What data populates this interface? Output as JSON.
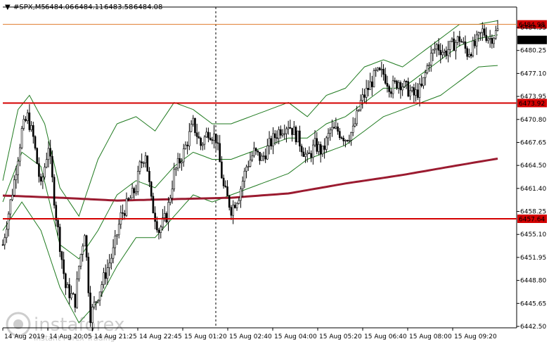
{
  "header": {
    "triangle": "▼",
    "symbol": "#SPX,M5",
    "ohlc": [
      "6484.06",
      "6484.11",
      "6483.58",
      "6484.08"
    ]
  },
  "watermark": {
    "brand": "instaforex",
    "tagline": "Instant Forex Trading"
  },
  "colors": {
    "candle": "#000000",
    "bollinger": "#1f7a1f",
    "ma": "#9b1b30",
    "level": "#d40000",
    "current_price": "#e07a2a",
    "label_red": "#d40000",
    "label_dark": "#000000"
  },
  "chart_data": {
    "type": "candlestick",
    "symbol": "#SPX",
    "timeframe": "M5",
    "y_ticks": [
      "6484.55",
      "6480.25",
      "6477.10",
      "6473.95",
      "6470.80",
      "6467.65",
      "6464.50",
      "6461.40",
      "6458.25",
      "6455.10",
      "6451.95",
      "6448.80",
      "6445.65",
      "6442.50"
    ],
    "x_ticks": [
      "14 Aug 2019",
      "14 Aug 20:05",
      "14 Aug 21:25",
      "14 Aug 22:45",
      "15 Aug 01:20",
      "15 Aug 02:40",
      "15 Aug 04:00",
      "15 Aug 05:20",
      "15 Aug 06:40",
      "15 Aug 08:00",
      "15 Aug 09:20"
    ],
    "levels": [
      {
        "value": 6484.98,
        "label": "6484.98",
        "style": "current-high"
      },
      {
        "value": 6473.92,
        "label": "6473.92",
        "style": "support-resistance"
      },
      {
        "value": 6457.64,
        "label": "6457.64",
        "style": "support-resistance"
      }
    ],
    "current_price": {
      "value": 6484.08,
      "label": "6484.08"
    },
    "session_separator_after": "14 Aug 22:45",
    "price_path": [
      [
        0,
        6454
      ],
      [
        6,
        6463
      ],
      [
        10,
        6470
      ],
      [
        13,
        6472
      ],
      [
        16,
        6469
      ],
      [
        20,
        6462
      ],
      [
        24,
        6468
      ],
      [
        28,
        6458
      ],
      [
        33,
        6448
      ],
      [
        38,
        6446
      ],
      [
        40,
        6451
      ],
      [
        43,
        6456
      ],
      [
        46,
        6444
      ],
      [
        50,
        6447
      ],
      [
        54,
        6450
      ],
      [
        58,
        6453
      ],
      [
        62,
        6458
      ],
      [
        66,
        6460
      ],
      [
        70,
        6462
      ],
      [
        72,
        6465
      ],
      [
        75,
        6467
      ],
      [
        78,
        6460
      ],
      [
        82,
        6456
      ],
      [
        86,
        6458
      ],
      [
        90,
        6464
      ],
      [
        95,
        6467
      ],
      [
        100,
        6471
      ],
      [
        104,
        6468
      ],
      [
        108,
        6470
      ],
      [
        112,
        6469
      ],
      [
        116,
        6462
      ],
      [
        120,
        6459
      ],
      [
        124,
        6461
      ],
      [
        128,
        6465
      ],
      [
        132,
        6467
      ],
      [
        136,
        6466
      ],
      [
        140,
        6468
      ],
      [
        145,
        6470
      ],
      [
        150,
        6471
      ],
      [
        155,
        6469
      ],
      [
        160,
        6466
      ],
      [
        164,
        6468
      ],
      [
        168,
        6467
      ],
      [
        172,
        6470
      ],
      [
        176,
        6470
      ],
      [
        180,
        6469
      ],
      [
        184,
        6470
      ],
      [
        188,
        6474
      ],
      [
        192,
        6476
      ],
      [
        196,
        6478
      ],
      [
        200,
        6478
      ],
      [
        204,
        6476
      ],
      [
        208,
        6477
      ],
      [
        212,
        6476
      ],
      [
        216,
        6475
      ],
      [
        220,
        6476
      ],
      [
        224,
        6480
      ],
      [
        228,
        6482
      ],
      [
        232,
        6481
      ],
      [
        236,
        6482
      ],
      [
        240,
        6483
      ],
      [
        244,
        6481
      ],
      [
        248,
        6482
      ],
      [
        252,
        6484
      ],
      [
        256,
        6483
      ],
      [
        260,
        6484.08
      ]
    ],
    "moving_average": [
      [
        0,
        6460.9
      ],
      [
        30,
        6460.6
      ],
      [
        60,
        6460.2
      ],
      [
        90,
        6460.4
      ],
      [
        120,
        6460.6
      ],
      [
        150,
        6461.2
      ],
      [
        180,
        6462.6
      ],
      [
        210,
        6463.8
      ],
      [
        240,
        6465.2
      ],
      [
        260,
        6466.1
      ]
    ],
    "bollinger_upper": [
      [
        0,
        6463
      ],
      [
        8,
        6473
      ],
      [
        14,
        6475
      ],
      [
        22,
        6471
      ],
      [
        30,
        6462
      ],
      [
        40,
        6458
      ],
      [
        50,
        6466
      ],
      [
        60,
        6471
      ],
      [
        70,
        6472
      ],
      [
        80,
        6470
      ],
      [
        90,
        6474
      ],
      [
        100,
        6473
      ],
      [
        110,
        6471
      ],
      [
        120,
        6471
      ],
      [
        130,
        6472
      ],
      [
        140,
        6473
      ],
      [
        150,
        6474
      ],
      [
        160,
        6472
      ],
      [
        170,
        6475
      ],
      [
        180,
        6476
      ],
      [
        190,
        6479
      ],
      [
        200,
        6480
      ],
      [
        210,
        6479
      ],
      [
        220,
        6481
      ],
      [
        230,
        6483
      ],
      [
        240,
        6485
      ],
      [
        250,
        6485
      ],
      [
        260,
        6485.5
      ]
    ],
    "bollinger_middle": [
      [
        0,
        6460
      ],
      [
        10,
        6467
      ],
      [
        20,
        6465
      ],
      [
        30,
        6454
      ],
      [
        40,
        6452
      ],
      [
        50,
        6456
      ],
      [
        60,
        6461
      ],
      [
        70,
        6463
      ],
      [
        80,
        6462
      ],
      [
        90,
        6465
      ],
      [
        100,
        6467
      ],
      [
        110,
        6466
      ],
      [
        120,
        6466
      ],
      [
        130,
        6467
      ],
      [
        140,
        6468
      ],
      [
        150,
        6469
      ],
      [
        160,
        6469
      ],
      [
        170,
        6471
      ],
      [
        180,
        6472
      ],
      [
        190,
        6474
      ],
      [
        200,
        6476
      ],
      [
        210,
        6476
      ],
      [
        220,
        6478
      ],
      [
        230,
        6480
      ],
      [
        240,
        6482
      ],
      [
        250,
        6483
      ],
      [
        260,
        6483.5
      ]
    ],
    "bollinger_lower": [
      [
        0,
        6456
      ],
      [
        10,
        6460
      ],
      [
        20,
        6456
      ],
      [
        30,
        6448
      ],
      [
        40,
        6443
      ],
      [
        50,
        6446
      ],
      [
        60,
        6451
      ],
      [
        70,
        6455
      ],
      [
        80,
        6455
      ],
      [
        90,
        6458
      ],
      [
        100,
        6461
      ],
      [
        110,
        6460
      ],
      [
        120,
        6461
      ],
      [
        130,
        6462
      ],
      [
        140,
        6463
      ],
      [
        150,
        6464
      ],
      [
        160,
        6466
      ],
      [
        170,
        6467
      ],
      [
        180,
        6468
      ],
      [
        190,
        6470
      ],
      [
        200,
        6472
      ],
      [
        210,
        6473
      ],
      [
        220,
        6474
      ],
      [
        230,
        6475
      ],
      [
        240,
        6477
      ],
      [
        250,
        6479
      ],
      [
        260,
        6479.2
      ]
    ]
  }
}
